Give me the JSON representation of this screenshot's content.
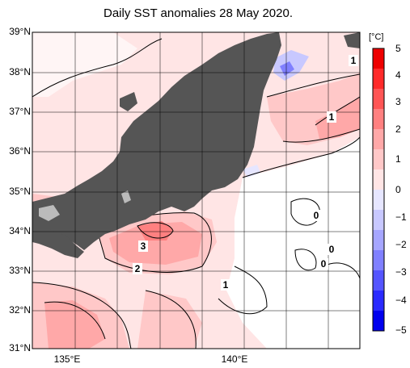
{
  "title": "Daily SST anomalies 28 May 2020.",
  "lat_labels": [
    "39°N",
    "38°N",
    "37°N",
    "36°N",
    "35°N",
    "34°N",
    "33°N",
    "32°N",
    "31°N"
  ],
  "lon_labels": [
    "135°E",
    "140°E"
  ],
  "colorbar": {
    "unit": "[°C]",
    "ticks": [
      "5",
      "4",
      "3",
      "2",
      "1",
      "0",
      "−1",
      "−2",
      "−3",
      "−4",
      "−5"
    ],
    "colors_warm": [
      "#ffe5e5",
      "#ffc8c8",
      "#ffa8a8",
      "#ff8080",
      "#ff5555",
      "#ff2a2a",
      "#ee0000"
    ],
    "colors_cool": [
      "#e6e6ff",
      "#c8c8ff",
      "#a6a6ff",
      "#8080ff",
      "#5555ff",
      "#2a2aff",
      "#0000ee"
    ],
    "neutral": "#ffffff"
  },
  "contour_labels": [
    "1",
    "1",
    "0",
    "0",
    "0",
    "3",
    "2",
    "1"
  ],
  "colors": {
    "land": "#555555",
    "lake": "#bbbbbb",
    "grid": "#000000"
  }
}
